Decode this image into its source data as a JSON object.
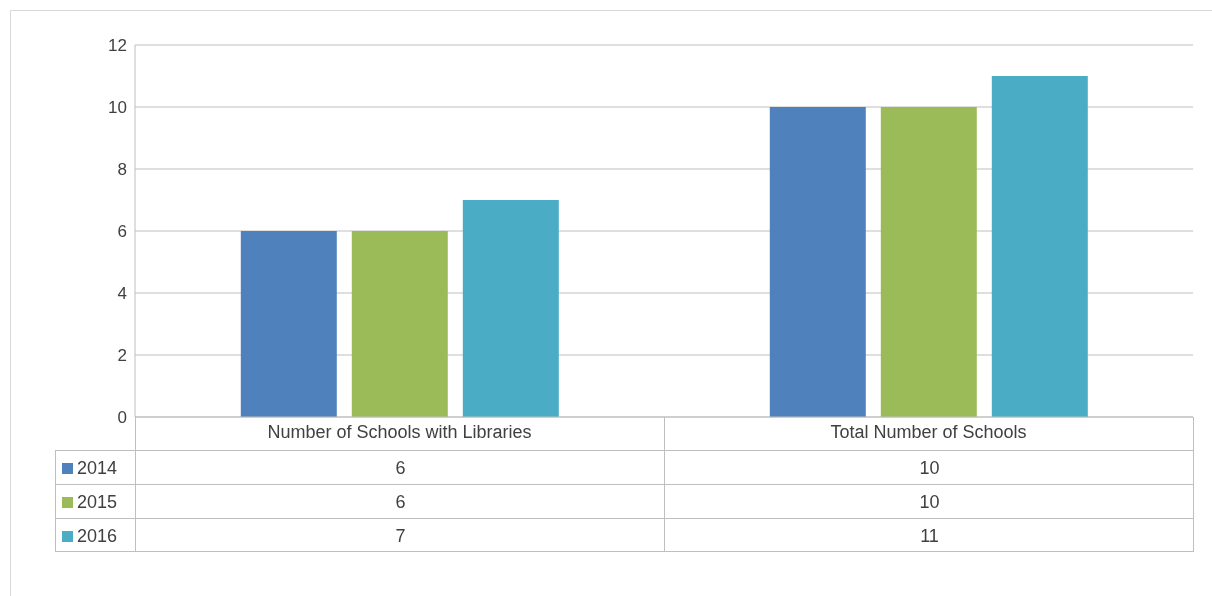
{
  "chart_data": {
    "type": "bar",
    "categories": [
      "Number of Schools with Libraries",
      "Total Number of Schools"
    ],
    "series": [
      {
        "name": "2014",
        "color": "#4f81bd",
        "values": [
          6,
          10
        ]
      },
      {
        "name": "2015",
        "color": "#9bbb59",
        "values": [
          6,
          10
        ]
      },
      {
        "name": "2016",
        "color": "#4bacc6",
        "values": [
          7,
          11
        ]
      }
    ],
    "ylim": [
      0,
      12
    ],
    "yticks": [
      0,
      2,
      4,
      6,
      8,
      10,
      12
    ],
    "grid": "y",
    "legend": "bottom",
    "data_labels": true
  }
}
